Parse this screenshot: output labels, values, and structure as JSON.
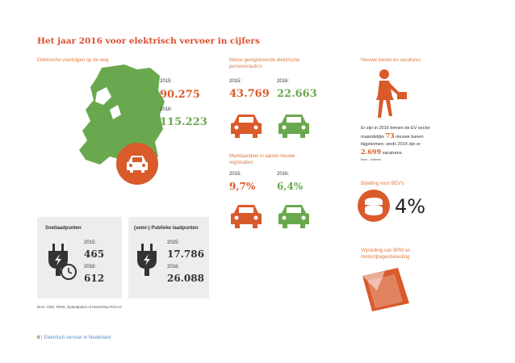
{
  "title": "Het jaar 2016 voor elektrisch vervoer in cijfers",
  "vehicles": {
    "heading": "Elektrische voertuigen op de weg",
    "year1_label": "2015:",
    "year1_value": "90.275",
    "year2_label": "2016:",
    "year2_value": "115.223"
  },
  "registrations": {
    "heading": "Nieuw geregistreerde elektrische personenauto's",
    "year1_label": "2015:",
    "year1_value": "43.769",
    "year2_label": "2016:",
    "year2_value": "22.663"
  },
  "market_share": {
    "heading": "Marktaandeel in aantal nieuwe registraties",
    "year1_label": "2015:",
    "year1_value": "9,7%",
    "year2_label": "2016:",
    "year2_value": "6,4%"
  },
  "jobs": {
    "heading": "Nieuwe banen en vacatures",
    "text_line1": "Er zijn in 2016 binnen de EV sector",
    "text_line2_pre": "maandelijks",
    "text_line2_num": "73",
    "text_line2_post": "nieuwe banen",
    "text_line3": "bijgekomen; sinds 2014 zijn er",
    "text_line4_num": "2.699",
    "text_line4_post": "vacatures.",
    "source": "Bron: Jobfeed"
  },
  "tax": {
    "heading": "Bijtelling voor BEV's",
    "value": "4%"
  },
  "exemption": {
    "heading_line1": "Vrijstelling van BPM en",
    "heading_line2": "motorrijtuigenbelasting"
  },
  "fast_charge": {
    "heading": "Snellaadpunten",
    "year1_label": "2015:",
    "year1_value": "465",
    "year2_label": "2016:",
    "year2_value": "612"
  },
  "public_charge": {
    "heading": "(semi-) Publieke laadpunten",
    "year1_label": "2015:",
    "year1_value": "17.786",
    "year2_label": "2016:",
    "year2_value": "26.088"
  },
  "source_note": "Bron: CBS, RDW, Oplaadpalen.nl bewerking RVO.nl",
  "footer": {
    "page": "6",
    "text": "Elektrisch vervoer in Nederland"
  },
  "colors": {
    "orange": "#d95a2b",
    "green": "#6aa84f",
    "title": "#d94f2e",
    "gray_box": "#ededed"
  }
}
